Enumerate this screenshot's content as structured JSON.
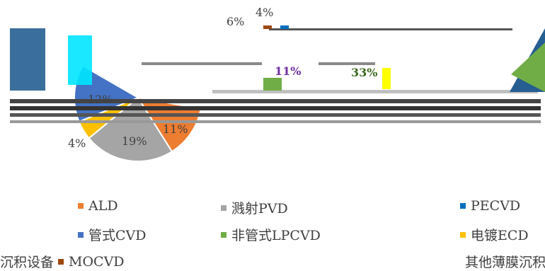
{
  "chart_data": {
    "type": "pie",
    "title": "",
    "legend_position": "bottom",
    "charts": [
      {
        "slices": [
          {
            "label": "ALD",
            "value": 11,
            "text": "11%",
            "color": "#ED7D31"
          },
          {
            "label": "溅射PVD",
            "value": 19,
            "text": "19%",
            "color": "#A5A5A5"
          },
          {
            "label": "电镀ECD",
            "value": 4,
            "text": "4%",
            "color": "#FFC000"
          },
          {
            "label": "管式CVD",
            "value": 12,
            "text": "12%",
            "color": "#4472C4"
          }
        ]
      },
      {
        "slices": [
          {
            "label": "MOCVD",
            "value": 6,
            "text": "6%",
            "color": "#9E480E"
          },
          {
            "label": "PECVD",
            "value": 4,
            "text": "4%",
            "color": "#0070C0"
          },
          {
            "label": "",
            "value": 11,
            "text": "11%",
            "color": "#A5A5A5"
          },
          {
            "label": "非管式LPCVD",
            "value": 33,
            "text": "33%",
            "color": "#70AD47"
          }
        ]
      }
    ],
    "legend": [
      {
        "label": "ALD",
        "color": "#ED7D31"
      },
      {
        "label": "溅射PVD",
        "color": "#A5A5A5"
      },
      {
        "label": "PECVD",
        "color": "#0070C0"
      },
      {
        "label": "管式CVD",
        "color": "#4472C4"
      },
      {
        "label": "非管式LPCVD",
        "color": "#70AD47"
      },
      {
        "label": "电镀ECD",
        "color": "#FFC000"
      },
      {
        "label": "MOCVD",
        "color": "#9E480E"
      },
      {
        "label": "其他薄膜沉积设备",
        "color": "#255E91"
      }
    ],
    "legend_prefix": "沉积设备"
  }
}
